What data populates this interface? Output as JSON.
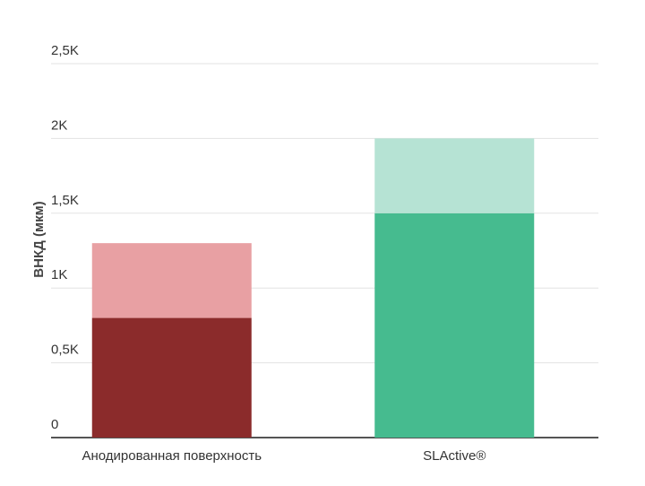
{
  "chart_data": {
    "type": "stacked-bar",
    "y_label": "ВНКД (мкм)",
    "categories": [
      "Анодированная поверхность",
      "SLActive®"
    ],
    "series": [
      {
        "colors": [
          "#8b2b2b",
          "#46bb8f"
        ],
        "values": [
          800,
          1500
        ]
      },
      {
        "colors": [
          "#e8a0a3",
          "#b6e3d4"
        ],
        "values": [
          500,
          500
        ]
      }
    ],
    "ylim": [
      0,
      2500
    ],
    "yticks": [
      0,
      {
        "value": 500,
        "label": "0,5K"
      },
      {
        "value": 1000,
        "label": "1K"
      },
      {
        "value": 1500,
        "label": "1,5K"
      },
      {
        "value": 2000,
        "label": "2K"
      },
      {
        "value": 2500,
        "label": "2,5K"
      }
    ],
    "grid": true
  }
}
